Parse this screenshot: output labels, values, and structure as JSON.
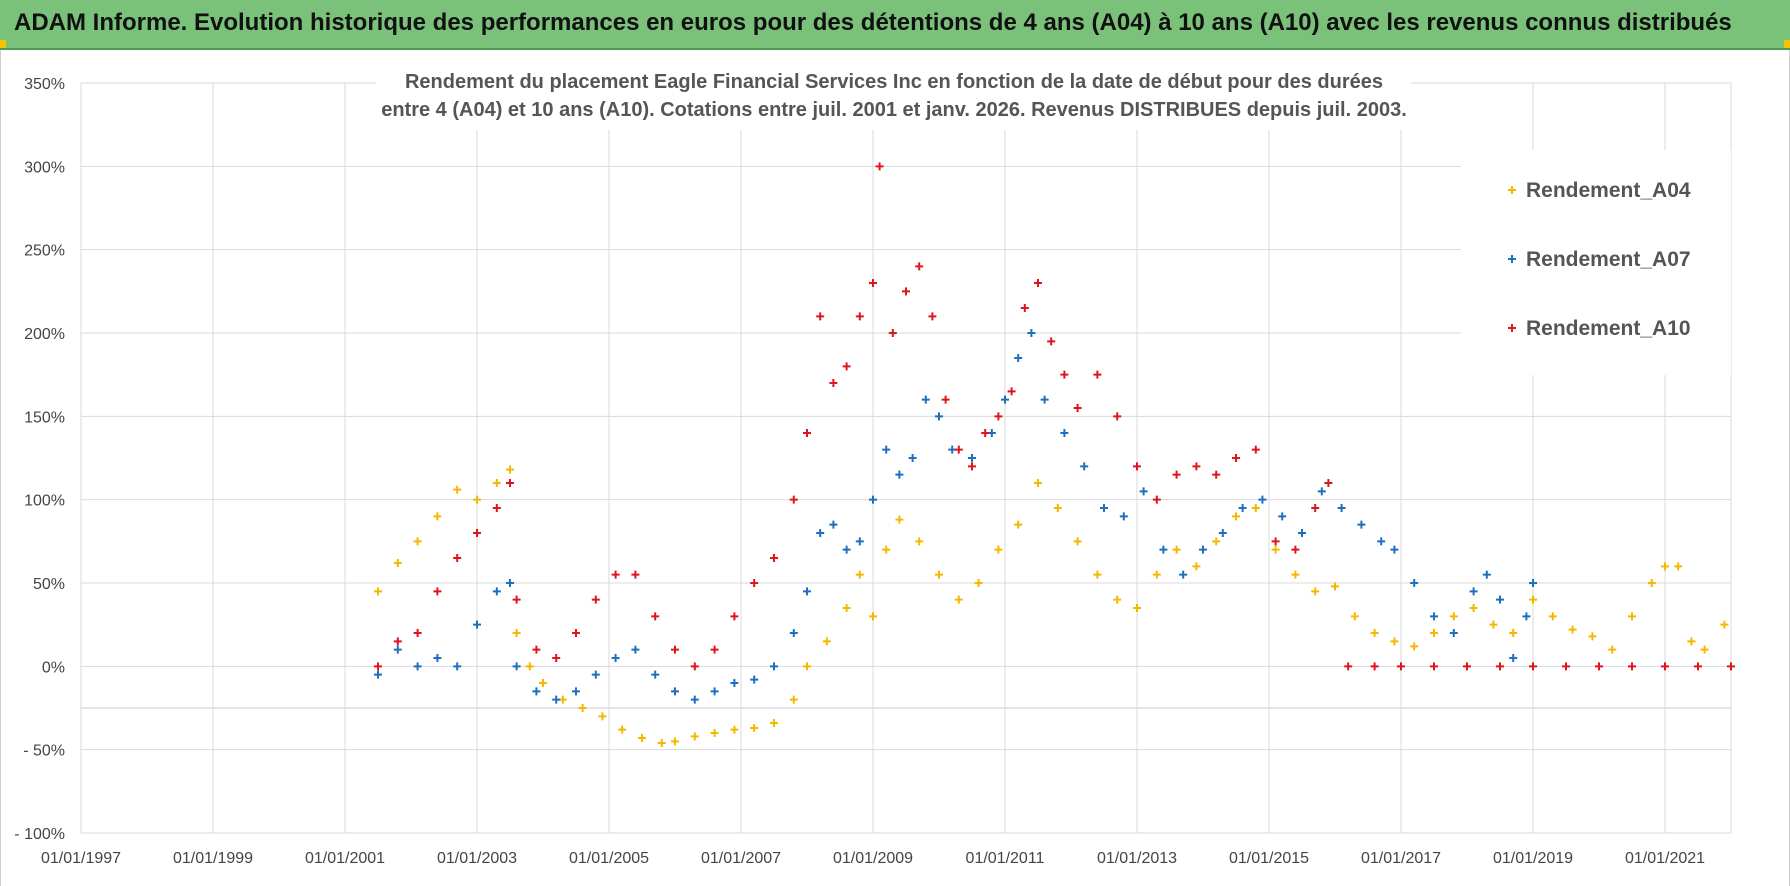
{
  "banner": {
    "title": "ADAM Informe. Evolution historique des performances en euros pour des détentions de 4 ans (A04) à 10 ans (A10) avec les revenus connus distribués"
  },
  "colors": {
    "banner_bg": "#7ac27a",
    "a04": "#f5b800",
    "a07": "#1f6fbf",
    "a10": "#e0141c",
    "grid": "#d9d9d9"
  },
  "chart_data": {
    "type": "scatter",
    "title_lines": [
      "Rendement du placement Eagle Financial Services Inc en fonction de la date de début pour des durées",
      "entre 4 (A04) et 10 ans (A10). Cotations entre juil. 2001 et janv. 2026. Revenus DISTRIBUES depuis juil. 2003."
    ],
    "xlabel": "",
    "ylabel": "",
    "xlim": [
      1997.0,
      2022.0
    ],
    "ylim": [
      -100,
      350
    ],
    "x_ticks": [
      "01/01/1997",
      "01/01/1999",
      "01/01/2001",
      "01/01/2003",
      "01/01/2005",
      "01/01/2007",
      "01/01/2009",
      "01/01/2011",
      "01/01/2013",
      "01/01/2015",
      "01/01/2017",
      "01/01/2019",
      "01/01/2021"
    ],
    "x_tick_years": [
      1997,
      1999,
      2001,
      2003,
      2005,
      2007,
      2009,
      2011,
      2013,
      2015,
      2017,
      2019,
      2021
    ],
    "y_ticks": [
      "350%",
      "300%",
      "250%",
      "200%",
      "150%",
      "100%",
      "50%",
      "0%",
      "- 50%",
      "- 100%"
    ],
    "y_tick_values": [
      350,
      300,
      250,
      200,
      150,
      100,
      50,
      0,
      -50,
      -100
    ],
    "legend_position": "right",
    "marker": "+",
    "series": [
      {
        "name": "Rendement_A04",
        "color_key": "a04",
        "x": [
          2001.5,
          2001.8,
          2002.1,
          2002.4,
          2002.7,
          2003.0,
          2003.3,
          2003.5,
          2003.6,
          2003.8,
          2004.0,
          2004.3,
          2004.6,
          2004.9,
          2005.2,
          2005.5,
          2005.8,
          2006.0,
          2006.3,
          2006.6,
          2006.9,
          2007.2,
          2007.5,
          2007.8,
          2008.0,
          2008.3,
          2008.6,
          2008.8,
          2009.0,
          2009.2,
          2009.4,
          2009.7,
          2010.0,
          2010.3,
          2010.6,
          2010.9,
          2011.2,
          2011.5,
          2011.8,
          2012.1,
          2012.4,
          2012.7,
          2013.0,
          2013.3,
          2013.6,
          2013.9,
          2014.2,
          2014.5,
          2014.8,
          2015.1,
          2015.4,
          2015.7,
          2016.0,
          2016.3,
          2016.6,
          2016.9,
          2017.2,
          2017.5,
          2017.8,
          2018.1,
          2018.4,
          2018.7,
          2019.0,
          2019.3,
          2019.6,
          2019.9,
          2020.2,
          2020.5,
          2020.8,
          2021.0,
          2021.2,
          2021.4,
          2021.6,
          2021.9
        ],
        "values": [
          45,
          62,
          75,
          90,
          106,
          100,
          110,
          118,
          20,
          0,
          -10,
          -20,
          -25,
          -30,
          -38,
          -43,
          -46,
          -45,
          -42,
          -40,
          -38,
          -37,
          -34,
          -20,
          0,
          15,
          35,
          55,
          30,
          70,
          88,
          75,
          55,
          40,
          50,
          70,
          85,
          110,
          95,
          75,
          55,
          40,
          35,
          55,
          70,
          60,
          75,
          90,
          95,
          70,
          55,
          45,
          48,
          30,
          20,
          15,
          12,
          20,
          30,
          35,
          25,
          20,
          40,
          30,
          22,
          18,
          10,
          30,
          50,
          60,
          60,
          15,
          10,
          25
        ]
      },
      {
        "name": "Rendement_A07",
        "color_key": "a07",
        "x": [
          2001.5,
          2001.8,
          2002.1,
          2002.4,
          2002.7,
          2003.0,
          2003.3,
          2003.5,
          2003.6,
          2003.9,
          2004.2,
          2004.5,
          2004.8,
          2005.1,
          2005.4,
          2005.7,
          2006.0,
          2006.3,
          2006.6,
          2006.9,
          2007.2,
          2007.5,
          2007.8,
          2008.0,
          2008.2,
          2008.4,
          2008.6,
          2008.8,
          2009.0,
          2009.2,
          2009.4,
          2009.6,
          2009.8,
          2010.0,
          2010.2,
          2010.5,
          2010.8,
          2011.0,
          2011.2,
          2011.4,
          2011.6,
          2011.9,
          2012.2,
          2012.5,
          2012.8,
          2013.1,
          2013.4,
          2013.7,
          2014.0,
          2014.3,
          2014.6,
          2014.9,
          2015.2,
          2015.5,
          2015.8,
          2016.1,
          2016.4,
          2016.7,
          2016.9,
          2017.2,
          2017.5,
          2017.8,
          2018.1,
          2018.3,
          2018.5,
          2018.7,
          2018.9,
          2019.0
        ],
        "values": [
          -5,
          10,
          0,
          5,
          0,
          25,
          45,
          50,
          0,
          -15,
          -20,
          -15,
          -5,
          5,
          10,
          -5,
          -15,
          -20,
          -15,
          -10,
          -8,
          0,
          20,
          45,
          80,
          85,
          70,
          75,
          100,
          130,
          115,
          125,
          160,
          150,
          130,
          125,
          140,
          160,
          185,
          200,
          160,
          140,
          120,
          95,
          90,
          105,
          70,
          55,
          70,
          80,
          95,
          100,
          90,
          80,
          105,
          95,
          85,
          75,
          70,
          50,
          30,
          20,
          45,
          55,
          40,
          5,
          30,
          50
        ]
      },
      {
        "name": "Rendement_A10",
        "color_key": "a10",
        "x": [
          2001.5,
          2001.8,
          2002.1,
          2002.4,
          2002.7,
          2003.0,
          2003.3,
          2003.5,
          2003.6,
          2003.9,
          2004.2,
          2004.5,
          2004.8,
          2005.1,
          2005.4,
          2005.7,
          2006.0,
          2006.3,
          2006.6,
          2006.9,
          2007.2,
          2007.5,
          2007.8,
          2008.0,
          2008.2,
          2008.4,
          2008.6,
          2008.8,
          2009.0,
          2009.1,
          2009.3,
          2009.5,
          2009.7,
          2009.9,
          2010.1,
          2010.3,
          2010.5,
          2010.7,
          2010.9,
          2011.1,
          2011.3,
          2011.5,
          2011.7,
          2011.9,
          2012.1,
          2012.4,
          2012.7,
          2013.0,
          2013.3,
          2013.6,
          2013.9,
          2014.2,
          2014.5,
          2014.8,
          2015.1,
          2015.4,
          2015.7,
          2015.9,
          2016.2,
          2016.6,
          2017.0,
          2017.5,
          2018.0,
          2018.5,
          2019.0,
          2019.5,
          2020.0,
          2020.5,
          2021.0,
          2021.5,
          2022.0
        ],
        "values": [
          0,
          15,
          20,
          45,
          65,
          80,
          95,
          110,
          40,
          10,
          5,
          20,
          40,
          55,
          55,
          30,
          10,
          0,
          10,
          30,
          50,
          65,
          100,
          140,
          210,
          170,
          180,
          210,
          230,
          300,
          200,
          225,
          240,
          210,
          160,
          130,
          120,
          140,
          150,
          165,
          215,
          230,
          195,
          175,
          155,
          175,
          150,
          120,
          100,
          115,
          120,
          115,
          125,
          130,
          75,
          70,
          95,
          110,
          0,
          0,
          0,
          0,
          0,
          0,
          0,
          0,
          0,
          0,
          0,
          0,
          0
        ]
      }
    ]
  }
}
